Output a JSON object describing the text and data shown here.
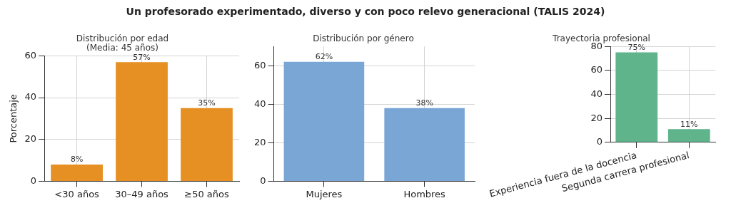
{
  "chart_data": [
    {
      "type": "bar",
      "title": "Un profesorado experimentado, diverso y con poco relevo generacional (TALIS 2024)",
      "subtitle": "Distribución por edad\n(Media: 45 años)",
      "ylabel": "Porcentaje",
      "categories": [
        "<30 años",
        "30–49 años",
        "≥50 años"
      ],
      "values": [
        8,
        57,
        35
      ],
      "value_labels": [
        "8%",
        "57%",
        "35%"
      ],
      "color": "#e69023",
      "ylim": [
        0,
        60
      ],
      "yticks": [
        0,
        20,
        40,
        60
      ],
      "grid": true
    },
    {
      "type": "bar",
      "subtitle": "Distribución por género",
      "categories": [
        "Mujeres",
        "Hombres"
      ],
      "values": [
        62,
        38
      ],
      "value_labels": [
        "62%",
        "38%"
      ],
      "color": "#7aa6d6",
      "ylim": [
        0,
        70
      ],
      "yticks": [
        0,
        20,
        40,
        60
      ],
      "grid": true
    },
    {
      "type": "bar",
      "subtitle": "Trayectoria profesional",
      "categories": [
        "Experiencia fuera de la docencia",
        "Segunda carrera profesional"
      ],
      "values": [
        75,
        11
      ],
      "value_labels": [
        "75%",
        "11%"
      ],
      "color": "#5fb48c",
      "ylim": [
        0,
        80
      ],
      "yticks": [
        0,
        20,
        40,
        60,
        80
      ],
      "grid": true
    }
  ]
}
